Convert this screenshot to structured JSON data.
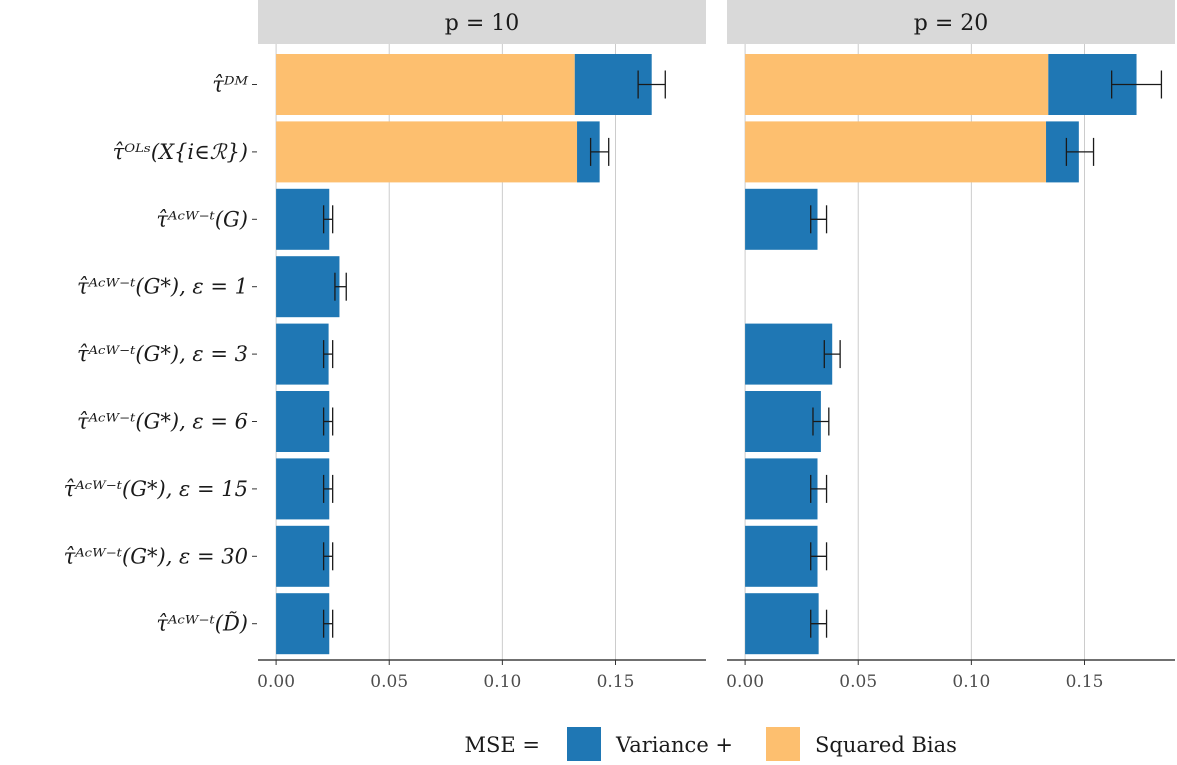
{
  "chart_data": {
    "type": "bar",
    "stacked": true,
    "orientation": "horizontal",
    "categories": [
      "τ̂ᴰᴹ",
      "τ̂ᴼᴸˢ(X{i∈ℛ})",
      "τ̂ᴬᶜᵂ⁻ᵗ(G)",
      "τ̂ᴬᶜᵂ⁻ᵗ(G*), ε = 1",
      "τ̂ᴬᶜᵂ⁻ᵗ(G*), ε = 3",
      "τ̂ᴬᶜᵂ⁻ᵗ(G*), ε = 6",
      "τ̂ᴬᶜᵂ⁻ᵗ(G*), ε = 15",
      "τ̂ᴬᶜᵂ⁻ᵗ(G*), ε = 30",
      "τ̂ᴬᶜᵂ⁻ᵗ(D̃)"
    ],
    "xlim": [
      -0.008,
      0.19
    ],
    "xticks": [
      0.0,
      0.05,
      0.1,
      0.15
    ],
    "xtick_labels": [
      "0.00",
      "0.05",
      "0.10",
      "0.15"
    ],
    "grid": "vertical major",
    "legend": {
      "position": "bottom",
      "title": "MSE =",
      "entries": [
        {
          "label": "Variance +",
          "color": "#1f77b4"
        },
        {
          "label": "Squared Bias",
          "color": "#fdbf6f"
        }
      ]
    },
    "colors": {
      "variance": "#1f77b4",
      "bias": "#fdbf6f",
      "strip": "#d9d9d9",
      "grid": "#cccccc"
    },
    "panels": [
      {
        "label": "p = 10",
        "bias": [
          0.132,
          0.133,
          0.0,
          0.0,
          0.0,
          0.0,
          0.0,
          0.0,
          0.0
        ],
        "variance": [
          0.034,
          0.01,
          0.0235,
          0.028,
          0.0232,
          0.0235,
          0.0235,
          0.0235,
          0.0235
        ],
        "err_low": [
          0.16,
          0.139,
          0.021,
          0.026,
          0.021,
          0.021,
          0.021,
          0.021,
          0.021
        ],
        "err_high": [
          0.172,
          0.147,
          0.025,
          0.031,
          0.025,
          0.025,
          0.025,
          0.025,
          0.025
        ]
      },
      {
        "label": "p = 20",
        "bias": [
          0.134,
          0.133,
          0.0,
          null,
          0.0,
          0.0,
          0.0,
          0.0,
          0.0
        ],
        "variance": [
          0.039,
          0.0145,
          0.032,
          null,
          0.0385,
          0.0335,
          0.032,
          0.032,
          0.0325
        ],
        "err_low": [
          0.162,
          0.142,
          0.029,
          null,
          0.035,
          0.03,
          0.029,
          0.029,
          0.029
        ],
        "err_high": [
          0.184,
          0.154,
          0.036,
          null,
          0.042,
          0.037,
          0.036,
          0.036,
          0.036
        ]
      }
    ]
  }
}
